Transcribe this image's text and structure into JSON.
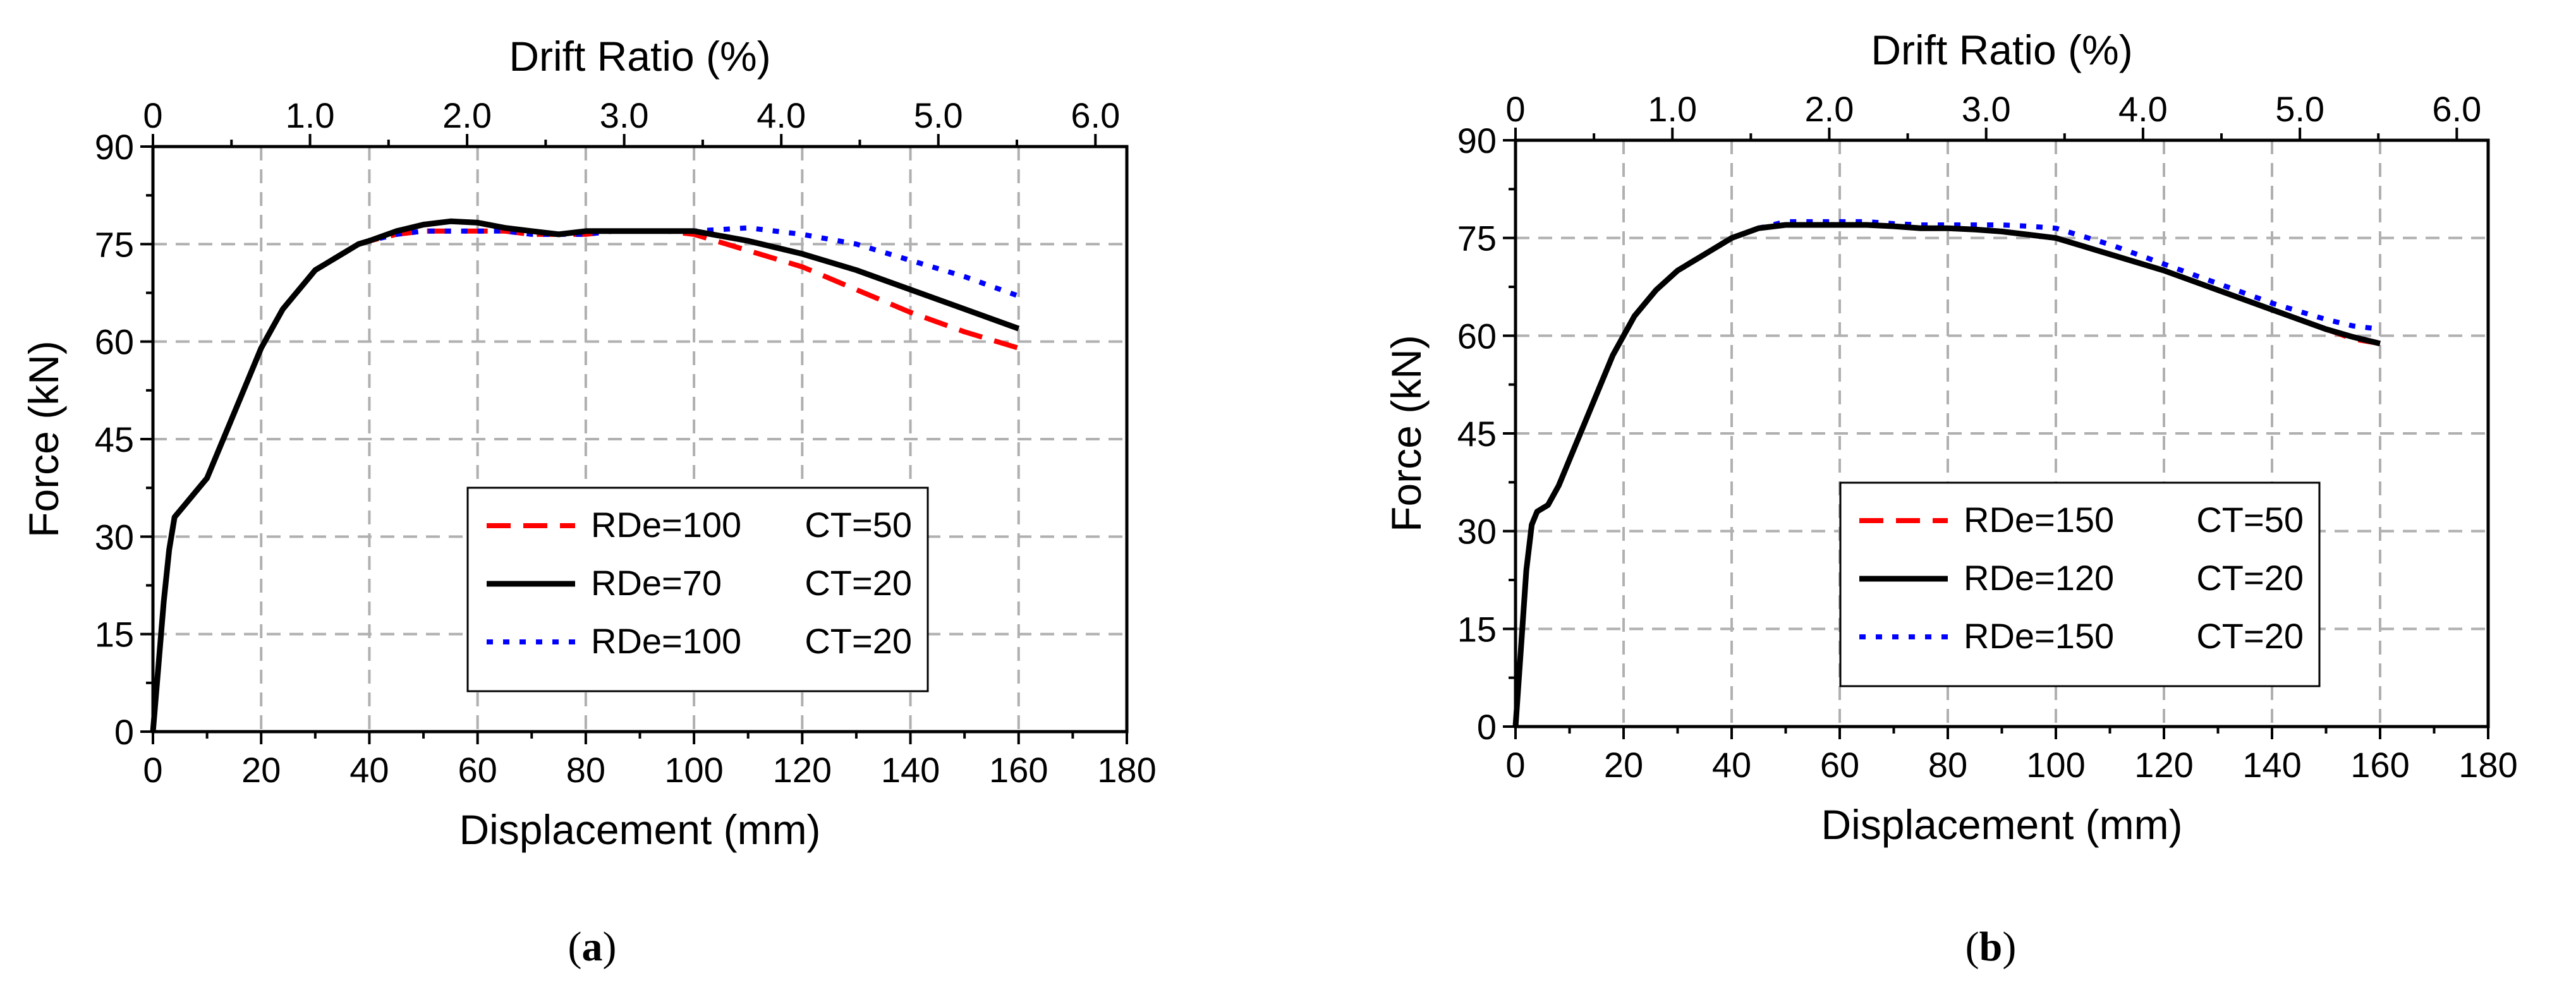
{
  "chart_data": [
    {
      "type": "line",
      "panel": "a",
      "caption": {
        "open": "(",
        "letter": "a",
        "close": ")"
      },
      "xlabel": "Displacement (mm)",
      "ylabel": "Force (kN)",
      "x2label": "Drift Ratio (%)",
      "xlim": [
        0,
        180
      ],
      "ylim": [
        0,
        90
      ],
      "x2lim": [
        0,
        6.2
      ],
      "xticks": [
        0,
        20,
        40,
        60,
        80,
        100,
        120,
        140,
        160,
        180
      ],
      "yticks": [
        0,
        15,
        30,
        45,
        60,
        75,
        90
      ],
      "x2ticks": [
        "0",
        "1.0",
        "2.0",
        "3.0",
        "4.0",
        "5.0",
        "6.0"
      ],
      "grid": true,
      "legend_position": "lower-center",
      "series": [
        {
          "name": "RDe=100 CT=50",
          "label_lead": "RDe=100",
          "label_tail": "CT=50",
          "color": "#ff0000",
          "style": "dashed",
          "x": [
            0,
            1,
            2,
            3,
            4,
            6,
            8,
            10,
            12,
            14,
            16,
            18,
            20,
            22,
            24,
            26,
            28,
            30,
            32,
            34,
            36,
            38,
            40,
            45,
            50,
            55,
            60,
            65,
            70,
            75,
            80,
            85,
            90,
            95,
            100,
            110,
            120,
            130,
            140,
            150,
            160
          ],
          "y": [
            0,
            10,
            20,
            28,
            33,
            35,
            37,
            39,
            43,
            47,
            51,
            55,
            59,
            62,
            65,
            67,
            69,
            71,
            72,
            73,
            74,
            75,
            75.5,
            76.5,
            77,
            77,
            77,
            77,
            76.5,
            76.5,
            76.5,
            77,
            77,
            77,
            76.5,
            74,
            71.5,
            68,
            64.5,
            61.5,
            59
          ]
        },
        {
          "name": "RDe=70 CT=20",
          "label_lead": "RDe=70",
          "label_tail": "CT=20",
          "color": "#000000",
          "style": "solid",
          "x": [
            0,
            1,
            2,
            3,
            4,
            6,
            8,
            10,
            12,
            14,
            16,
            18,
            20,
            22,
            24,
            26,
            28,
            30,
            32,
            34,
            36,
            38,
            40,
            45,
            50,
            55,
            60,
            65,
            70,
            75,
            80,
            85,
            90,
            95,
            100,
            110,
            120,
            130,
            140,
            150,
            160
          ],
          "y": [
            0,
            10,
            20,
            28,
            33,
            35,
            37,
            39,
            43,
            47,
            51,
            55,
            59,
            62,
            65,
            67,
            69,
            71,
            72,
            73,
            74,
            75,
            75.5,
            77,
            78,
            78.5,
            78.3,
            77.5,
            77,
            76.5,
            77,
            77,
            77,
            77,
            77,
            75.5,
            73.5,
            71,
            68,
            65,
            62
          ]
        },
        {
          "name": "RDe=100 CT=20",
          "label_lead": "RDe=100",
          "label_tail": "CT=20",
          "color": "#0000ff",
          "style": "dotted",
          "x": [
            0,
            1,
            2,
            3,
            4,
            6,
            8,
            10,
            12,
            14,
            16,
            18,
            20,
            22,
            24,
            26,
            28,
            30,
            32,
            34,
            36,
            38,
            40,
            45,
            50,
            55,
            60,
            65,
            70,
            75,
            80,
            85,
            90,
            95,
            100,
            110,
            120,
            130,
            140,
            150,
            160
          ],
          "y": [
            0,
            10,
            20,
            28,
            33,
            35,
            37,
            39,
            43,
            47,
            51,
            55,
            59,
            62,
            65,
            67,
            69,
            71,
            72,
            73,
            74,
            75,
            75.5,
            76.5,
            77,
            77,
            77,
            77,
            76.5,
            76.5,
            76.5,
            77,
            77,
            77,
            77,
            77.5,
            76.5,
            75,
            72.5,
            70,
            67
          ]
        }
      ]
    },
    {
      "type": "line",
      "panel": "b",
      "caption": {
        "open": "(",
        "letter": "b",
        "close": ")"
      },
      "xlabel": "Displacement (mm)",
      "ylabel": "Force (kN)",
      "x2label": "Drift Ratio (%)",
      "xlim": [
        0,
        180
      ],
      "ylim": [
        0,
        90
      ],
      "x2lim": [
        0,
        6.2
      ],
      "xticks": [
        0,
        20,
        40,
        60,
        80,
        100,
        120,
        140,
        160,
        180
      ],
      "yticks": [
        0,
        15,
        30,
        45,
        60,
        75,
        90
      ],
      "x2ticks": [
        "0",
        "1.0",
        "2.0",
        "3.0",
        "4.0",
        "5.0",
        "6.0"
      ],
      "grid": true,
      "legend_position": "lower-center",
      "series": [
        {
          "name": "RDe=150 CT=50",
          "label_lead": "RDe=150",
          "label_tail": "CT=50",
          "color": "#ff0000",
          "style": "dashed",
          "x": [
            0,
            1,
            2,
            3,
            4,
            6,
            8,
            10,
            12,
            14,
            16,
            18,
            20,
            22,
            24,
            26,
            28,
            30,
            32,
            34,
            36,
            38,
            40,
            45,
            50,
            55,
            60,
            65,
            70,
            75,
            80,
            85,
            90,
            95,
            100,
            110,
            120,
            130,
            140,
            150,
            155,
            160
          ],
          "y": [
            0,
            12,
            24,
            31,
            33,
            34,
            37,
            41,
            45,
            49,
            53,
            57,
            60,
            63,
            65,
            67,
            68.5,
            70,
            71,
            72,
            73,
            74,
            75,
            76.5,
            77,
            77,
            77,
            77,
            76.8,
            76.5,
            76.5,
            76.3,
            76,
            75.5,
            75,
            72.5,
            70,
            67,
            64,
            61,
            59.5,
            58.8
          ]
        },
        {
          "name": "RDe=120 CT=20",
          "label_lead": "RDe=120",
          "label_tail": "CT=20",
          "color": "#000000",
          "style": "solid",
          "x": [
            0,
            1,
            2,
            3,
            4,
            6,
            8,
            10,
            12,
            14,
            16,
            18,
            20,
            22,
            24,
            26,
            28,
            30,
            32,
            34,
            36,
            38,
            40,
            45,
            50,
            55,
            60,
            65,
            70,
            75,
            80,
            85,
            90,
            95,
            100,
            110,
            120,
            130,
            140,
            150,
            155,
            160
          ],
          "y": [
            0,
            12,
            24,
            31,
            33,
            34,
            37,
            41,
            45,
            49,
            53,
            57,
            60,
            63,
            65,
            67,
            68.5,
            70,
            71,
            72,
            73,
            74,
            75,
            76.5,
            77,
            77,
            77,
            77,
            76.8,
            76.5,
            76.5,
            76.3,
            76,
            75.5,
            75,
            72.5,
            70,
            67,
            64,
            61,
            59.8,
            58.8
          ]
        },
        {
          "name": "RDe=150 CT=20",
          "label_lead": "RDe=150",
          "label_tail": "CT=20",
          "color": "#0000ff",
          "style": "dotted",
          "x": [
            0,
            1,
            2,
            3,
            4,
            6,
            8,
            10,
            12,
            14,
            16,
            18,
            20,
            22,
            24,
            26,
            28,
            30,
            32,
            34,
            36,
            38,
            40,
            45,
            50,
            55,
            60,
            65,
            70,
            75,
            80,
            85,
            90,
            95,
            100,
            110,
            120,
            130,
            140,
            150,
            155,
            160
          ],
          "y": [
            0,
            12,
            24,
            31,
            33,
            34,
            37,
            41,
            45,
            49,
            53,
            57,
            60,
            63,
            65,
            67,
            68.5,
            70,
            71,
            72,
            73,
            74,
            75,
            76.5,
            77.5,
            77.5,
            77.5,
            77.5,
            77.2,
            77,
            77,
            77,
            77,
            76.8,
            76.5,
            74,
            71,
            68,
            65,
            62.5,
            61.5,
            61
          ]
        }
      ]
    }
  ]
}
